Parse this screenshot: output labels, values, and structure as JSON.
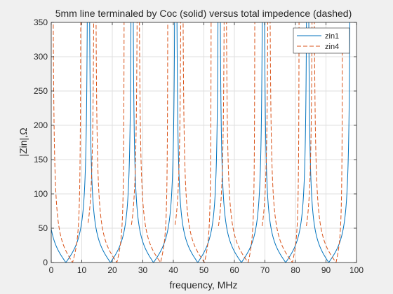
{
  "chart_data": {
    "type": "line",
    "title": "5mm line terminaled by Coc (solid) versus total impedence (dashed)",
    "xlabel": "frequency, MHz",
    "ylabel": "|Zin|,Ω",
    "xlim": [
      0,
      100
    ],
    "ylim": [
      0,
      350
    ],
    "xticks": [
      0,
      10,
      20,
      30,
      40,
      50,
      60,
      70,
      80,
      90,
      100
    ],
    "yticks": [
      0,
      50,
      100,
      150,
      200,
      250,
      300,
      350
    ],
    "grid": true,
    "legend_position": "top-right",
    "series": [
      {
        "name": "zin1",
        "style": "solid",
        "color": "#0072bd",
        "zeros_mhz": [
          4.8,
          19.4,
          33.5,
          48.0,
          62.3,
          76.8,
          90.9
        ],
        "poles_mhz": [
          12.2,
          26.5,
          40.8,
          55.0,
          69.5,
          84.0,
          98.2
        ]
      },
      {
        "name": "zin4",
        "style": "dashed",
        "color": "#d95319",
        "zeros_mhz": [
          7.0,
          21.5,
          35.8,
          50.2,
          64.5,
          79.0,
          93.3
        ],
        "poles_mhz": [
          0.3,
          9.8,
          14.3,
          24.0,
          28.5,
          38.3,
          42.8,
          52.5,
          57.0,
          66.8,
          71.3,
          81.3,
          85.8,
          95.5
        ]
      }
    ]
  }
}
